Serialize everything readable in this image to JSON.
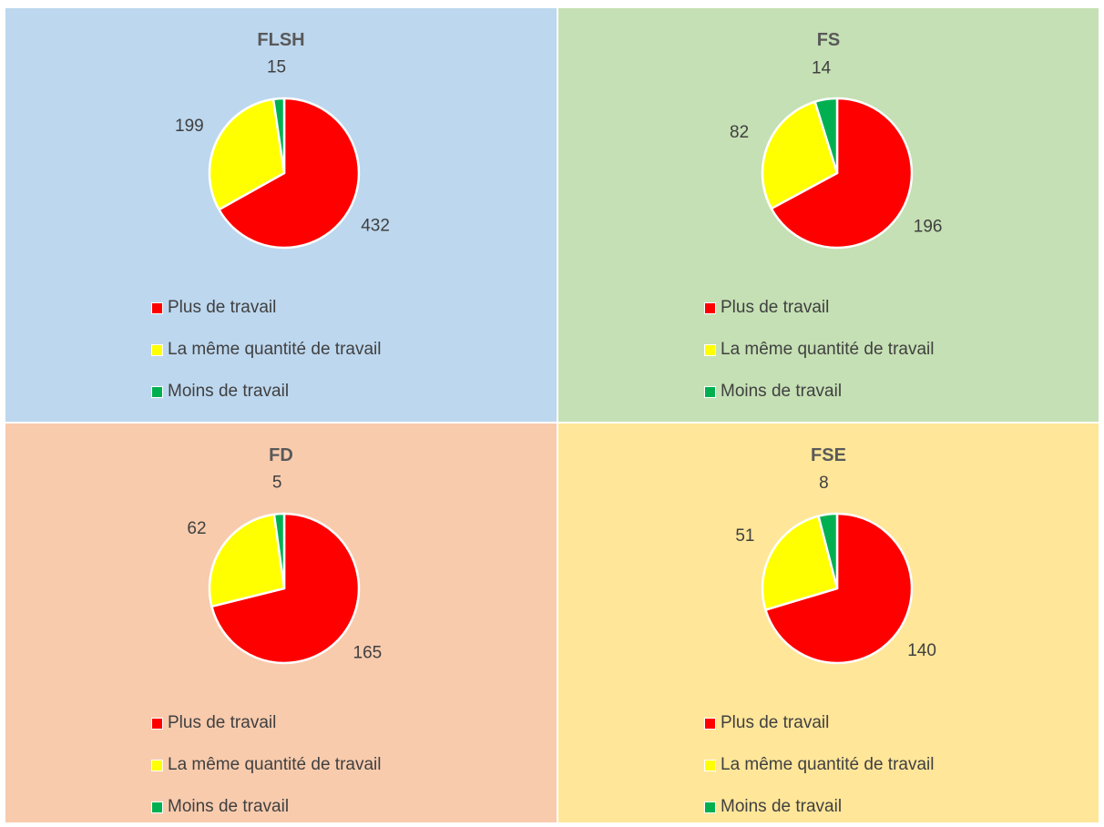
{
  "colors": {
    "panel_backgrounds": [
      "#BDD7EE",
      "#C5E0B4",
      "#F8CBAD",
      "#FFE699"
    ],
    "plus": "#FF0000",
    "meme": "#FFFF00",
    "moins": "#00B050",
    "text": "#404040",
    "title": "#595959"
  },
  "legend": {
    "labels": [
      "Plus de travail",
      "La même quantité de travail",
      "Moins de travail"
    ]
  },
  "chart_data": [
    {
      "type": "pie",
      "title": "FLSH",
      "categories": [
        "Plus de travail",
        "La même quantité de travail",
        "Moins de travail"
      ],
      "values": [
        432,
        199,
        15
      ],
      "legend_position": "bottom"
    },
    {
      "type": "pie",
      "title": "FS",
      "categories": [
        "Plus de travail",
        "La même quantité de travail",
        "Moins de travail"
      ],
      "values": [
        196,
        82,
        14
      ],
      "legend_position": "bottom"
    },
    {
      "type": "pie",
      "title": "FD",
      "categories": [
        "Plus de travail",
        "La même quantité de travail",
        "Moins de travail"
      ],
      "values": [
        165,
        62,
        5
      ],
      "legend_position": "bottom"
    },
    {
      "type": "pie",
      "title": "FSE",
      "categories": [
        "Plus de travail",
        "La même quantité de travail",
        "Moins de travail"
      ],
      "values": [
        140,
        51,
        8
      ],
      "legend_position": "bottom"
    }
  ]
}
